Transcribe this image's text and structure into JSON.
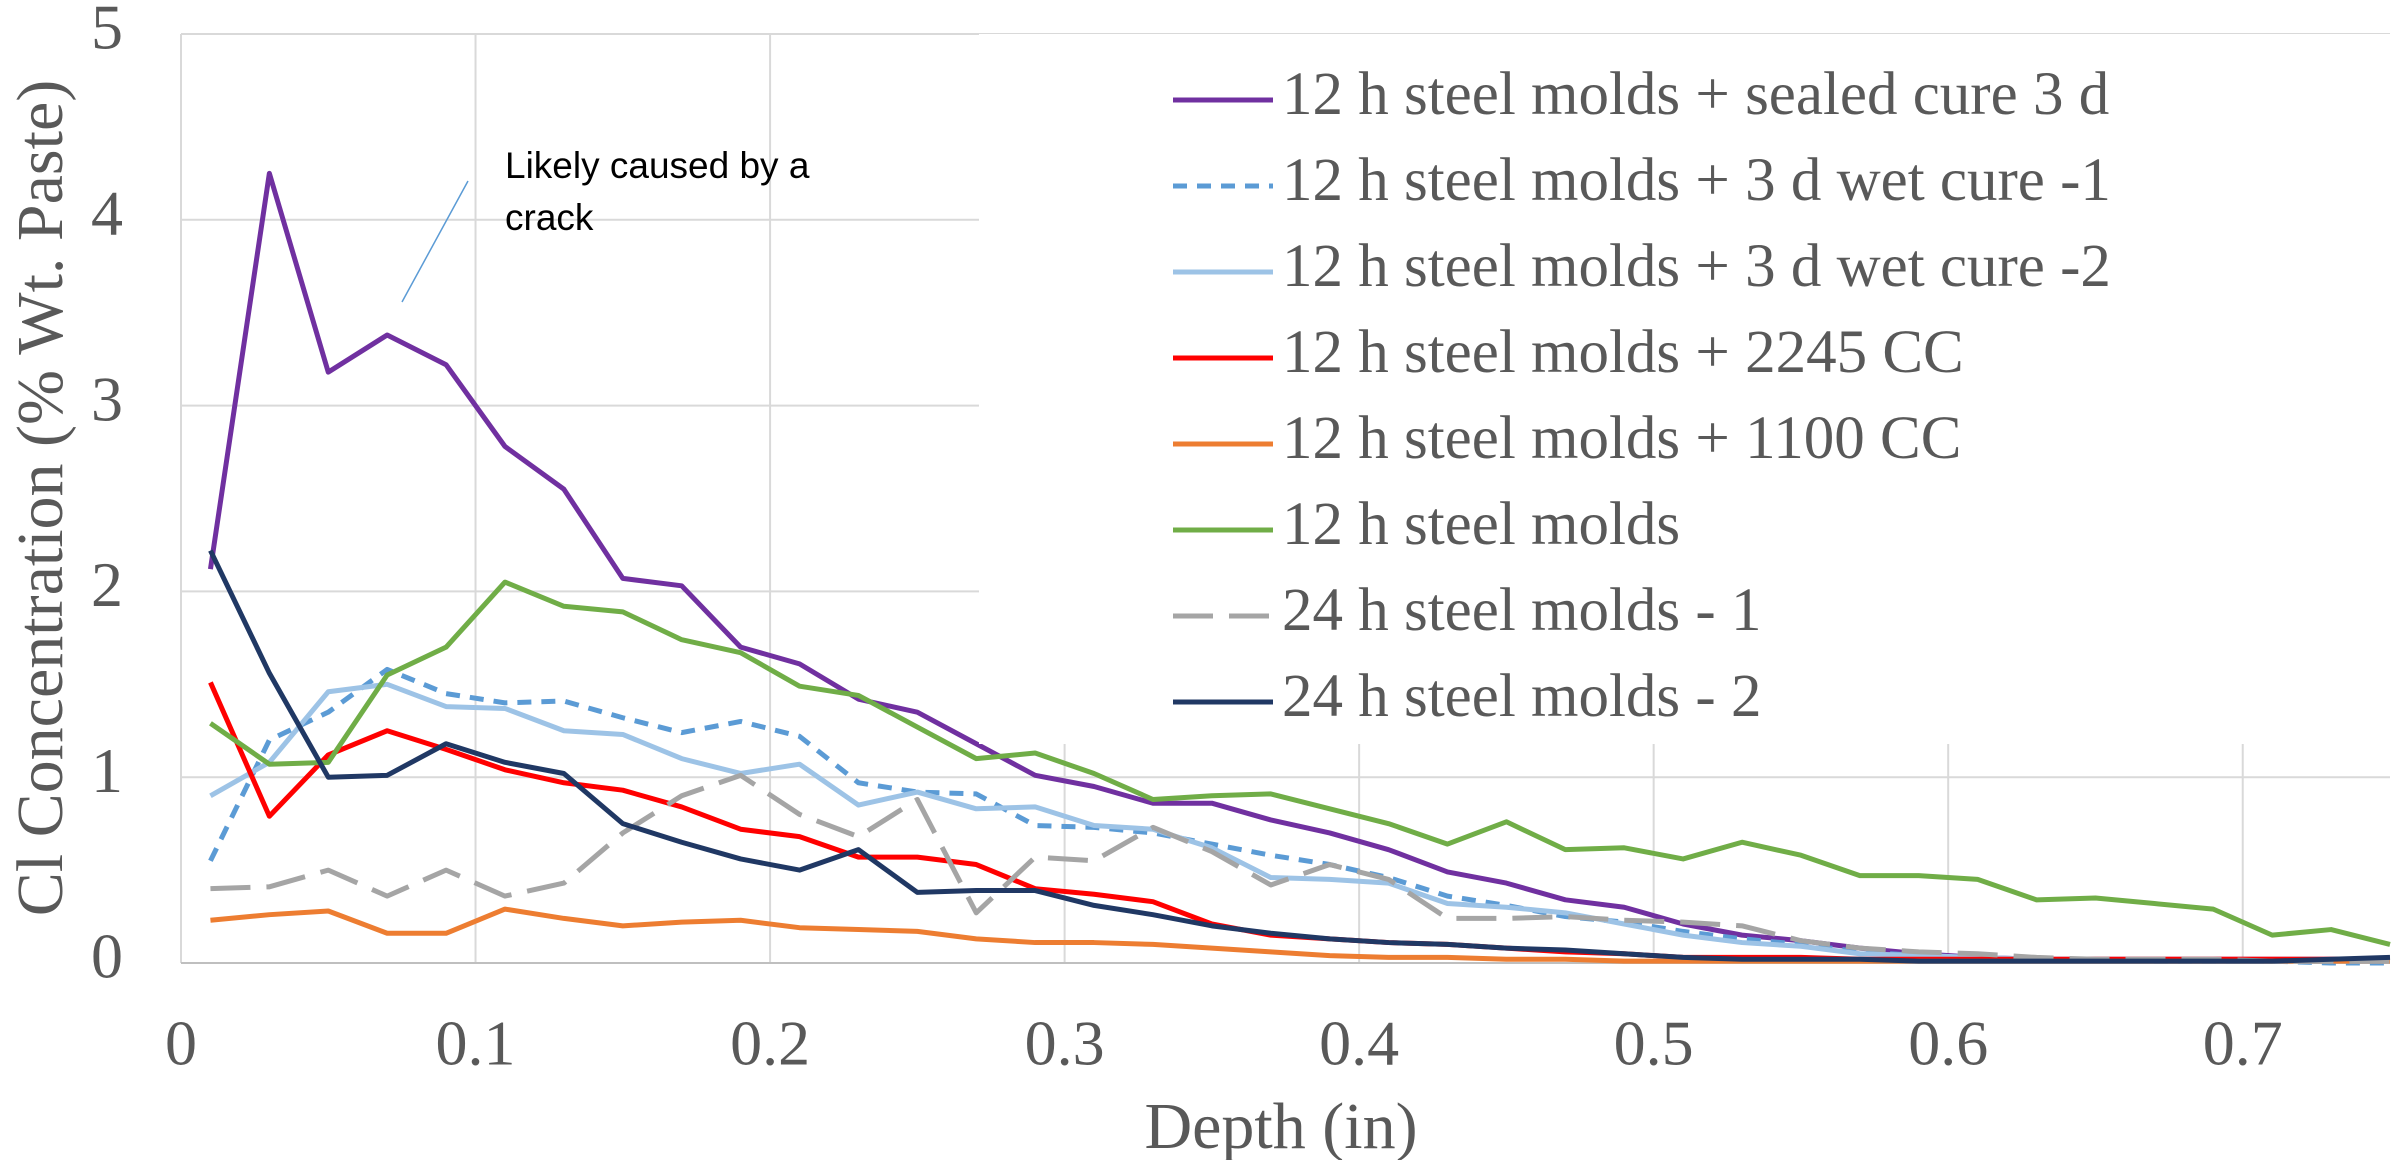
{
  "chart_data": {
    "type": "line",
    "x_label": "Depth (in)",
    "y_label": "Cl Concentration (% Wt. Paste)",
    "annotation": "Likely caused by a crack",
    "xlim": [
      0,
      0.75
    ],
    "xticks": [
      0,
      0.1,
      0.2,
      0.3,
      0.4,
      0.5,
      0.6,
      0.7
    ],
    "ylim": [
      0,
      5
    ],
    "yticks": [
      0,
      1,
      2,
      3,
      4,
      5
    ],
    "grid": true,
    "legend": "upper-right",
    "x": [
      0.01,
      0.03,
      0.05,
      0.07,
      0.09,
      0.11,
      0.13,
      0.15,
      0.17,
      0.19,
      0.21,
      0.23,
      0.25,
      0.27,
      0.29,
      0.31,
      0.33,
      0.35,
      0.37,
      0.39,
      0.41,
      0.43,
      0.45,
      0.47,
      0.49,
      0.51,
      0.53,
      0.55,
      0.57,
      0.59,
      0.61,
      0.63,
      0.65,
      0.67,
      0.69,
      0.71,
      0.73,
      0.75
    ],
    "series": [
      {
        "name": "12 h steel molds + sealed cure 3 d",
        "color": "#7030a0",
        "dash": "solid",
        "values": [
          2.12,
          4.25,
          3.18,
          3.38,
          3.22,
          2.78,
          2.55,
          2.07,
          2.03,
          1.7,
          1.61,
          1.42,
          1.35,
          1.18,
          1.01,
          0.95,
          0.86,
          0.86,
          0.77,
          0.7,
          0.61,
          0.49,
          0.43,
          0.34,
          0.3,
          0.21,
          0.15,
          0.12,
          0.08,
          0.05,
          0.03,
          0.02,
          0.02,
          0.02,
          0.02,
          0.02,
          0.02,
          0.02
        ]
      },
      {
        "name": "12 h steel molds + 3 d wet cure -1",
        "color": "#5b9bd5",
        "dash": "short",
        "values": [
          0.55,
          1.2,
          1.35,
          1.58,
          1.45,
          1.4,
          1.41,
          1.32,
          1.24,
          1.3,
          1.22,
          0.97,
          0.92,
          0.91,
          0.74,
          0.73,
          0.7,
          0.64,
          0.58,
          0.53,
          0.46,
          0.36,
          0.31,
          0.25,
          0.22,
          0.17,
          0.13,
          0.1,
          0.06,
          0.04,
          0.03,
          0.02,
          0.02,
          0.01,
          0.01,
          0.01,
          0,
          0
        ]
      },
      {
        "name": "12 h steel molds + 3 d wet cure -2",
        "color": "#9dc3e6",
        "dash": "solid",
        "values": [
          0.9,
          1.08,
          1.46,
          1.5,
          1.38,
          1.37,
          1.25,
          1.23,
          1.1,
          1.02,
          1.07,
          0.85,
          0.92,
          0.83,
          0.84,
          0.74,
          0.72,
          0.62,
          0.46,
          0.45,
          0.43,
          0.32,
          0.3,
          0.27,
          0.21,
          0.15,
          0.11,
          0.09,
          0.05,
          0.04,
          0.03,
          0.02,
          0.02,
          0.02,
          0.01,
          0.01,
          0.01,
          0.01
        ]
      },
      {
        "name": "12 h steel molds + 2245 CC",
        "color": "#ff0000",
        "dash": "solid",
        "values": [
          1.51,
          0.79,
          1.12,
          1.25,
          1.15,
          1.04,
          0.97,
          0.93,
          0.84,
          0.72,
          0.68,
          0.57,
          0.57,
          0.53,
          0.4,
          0.37,
          0.33,
          0.21,
          0.15,
          0.13,
          0.11,
          0.1,
          0.08,
          0.06,
          0.05,
          0.03,
          0.03,
          0.03,
          0.02,
          0.02,
          0.02,
          0.02,
          0.02,
          0.02,
          0.02,
          0.02,
          0.02,
          0.02
        ]
      },
      {
        "name": "12 h steel molds + 1100 CC",
        "color": "#ed7d31",
        "dash": "solid",
        "values": [
          0.23,
          0.26,
          0.28,
          0.16,
          0.16,
          0.29,
          0.24,
          0.2,
          0.22,
          0.23,
          0.19,
          0.18,
          0.17,
          0.13,
          0.11,
          0.11,
          0.1,
          0.08,
          0.06,
          0.04,
          0.03,
          0.03,
          0.02,
          0.02,
          0.01,
          0.01,
          0.01,
          0.01,
          0.01,
          0.01,
          0.01,
          0.01,
          0.01,
          0.01,
          0.01,
          0.01,
          0.01,
          0.01
        ]
      },
      {
        "name": "12 h steel molds",
        "color": "#70ad47",
        "dash": "solid",
        "values": [
          1.29,
          1.07,
          1.08,
          1.55,
          1.7,
          2.05,
          1.92,
          1.89,
          1.74,
          1.67,
          1.49,
          1.44,
          1.27,
          1.1,
          1.13,
          1.02,
          0.88,
          0.9,
          0.91,
          0.83,
          0.75,
          0.64,
          0.76,
          0.61,
          0.62,
          0.56,
          0.65,
          0.58,
          0.47,
          0.47,
          0.45,
          0.34,
          0.35,
          0.32,
          0.29,
          0.15,
          0.18,
          0.1
        ]
      },
      {
        "name": "24 h steel molds - 1",
        "color": "#a5a5a5",
        "dash": "long",
        "values": [
          0.4,
          0.41,
          0.5,
          0.36,
          0.5,
          0.36,
          0.43,
          0.7,
          0.9,
          1.01,
          0.8,
          0.68,
          0.88,
          0.27,
          0.57,
          0.55,
          0.73,
          0.6,
          0.42,
          0.53,
          0.45,
          0.24,
          0.24,
          0.25,
          0.23,
          0.22,
          0.2,
          0.12,
          0.08,
          0.06,
          0.05,
          0.03,
          0.02,
          0.02,
          0.02,
          0.01,
          0.01,
          0.01
        ]
      },
      {
        "name": "24 h steel molds - 2",
        "color": "#203864",
        "dash": "solid",
        "values": [
          2.22,
          1.56,
          1.0,
          1.01,
          1.18,
          1.08,
          1.02,
          0.75,
          0.65,
          0.56,
          0.5,
          0.61,
          0.38,
          0.39,
          0.39,
          0.31,
          0.26,
          0.2,
          0.16,
          0.13,
          0.11,
          0.1,
          0.08,
          0.07,
          0.05,
          0.03,
          0.02,
          0.02,
          0.02,
          0.01,
          0.01,
          0.01,
          0.01,
          0.01,
          0.01,
          0.01,
          0.02,
          0.03
        ]
      }
    ]
  }
}
